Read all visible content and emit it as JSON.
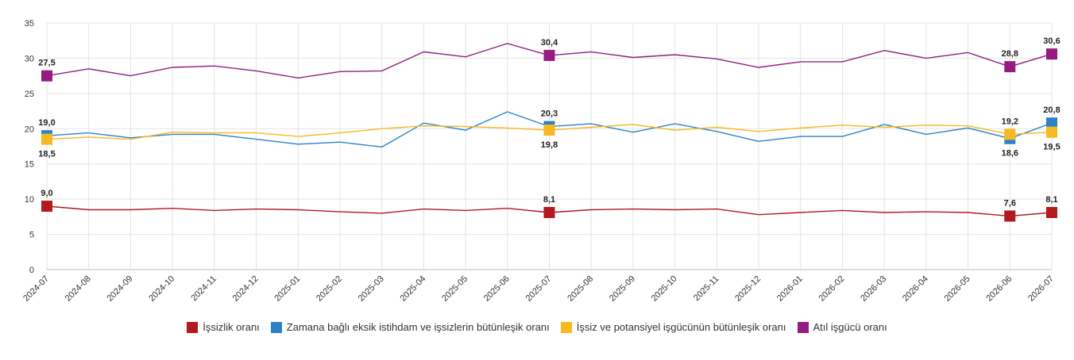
{
  "chart_data": {
    "type": "line",
    "x": [
      "2024-07",
      "2024-08",
      "2024-09",
      "2024-10",
      "2024-11",
      "2024-12",
      "2025-01",
      "2025-02",
      "2025-03",
      "2025-04",
      "2025-05",
      "2025-06",
      "2025-07",
      "2025-08",
      "2025-09",
      "2025-10",
      "2025-11",
      "2025-12",
      "2026-01",
      "2026-02",
      "2026-03",
      "2026-04",
      "2026-05",
      "2026-06",
      "2026-07"
    ],
    "ylim": [
      0,
      35
    ],
    "yticks": [
      0,
      5,
      10,
      15,
      20,
      25,
      30,
      35
    ],
    "grid": true,
    "legend_position": "bottom",
    "series": [
      {
        "name": "İşsizlik oranı",
        "color": "#b3191f",
        "values": [
          9.0,
          8.5,
          8.5,
          8.7,
          8.4,
          8.6,
          8.5,
          8.2,
          8.0,
          8.6,
          8.4,
          8.7,
          8.1,
          8.5,
          8.6,
          8.5,
          8.6,
          7.8,
          8.1,
          8.4,
          8.1,
          8.2,
          8.1,
          7.6,
          8.1
        ],
        "labels": {
          "0": "9,0",
          "12": "8,1",
          "23": "7,6",
          "24": "8,1"
        },
        "label_side": {
          "0": "above",
          "12": "above",
          "23": "above",
          "24": "above"
        }
      },
      {
        "name": "Zamana bağlı eksik istihdam ve işsizlerin bütünleşik oranı",
        "color": "#2b82c8",
        "values": [
          19.0,
          19.4,
          18.7,
          19.2,
          19.2,
          18.5,
          17.8,
          18.1,
          17.4,
          20.8,
          19.8,
          22.4,
          20.3,
          20.7,
          19.5,
          20.7,
          19.6,
          18.2,
          18.9,
          18.9,
          20.6,
          19.2,
          20.1,
          18.6,
          20.8
        ],
        "labels": {
          "0": "19,0",
          "12": "20,3",
          "23": "18,6",
          "24": "20,8"
        },
        "label_side": {
          "0": "above",
          "12": "above",
          "23": "below",
          "24": "above"
        }
      },
      {
        "name": "İşsiz ve potansiyel işgücünün bütünleşik oranı",
        "color": "#f5b921",
        "values": [
          18.5,
          18.8,
          18.5,
          19.5,
          19.4,
          19.4,
          18.9,
          19.4,
          20.0,
          20.4,
          20.3,
          20.1,
          19.8,
          20.2,
          20.6,
          19.8,
          20.2,
          19.6,
          20.1,
          20.5,
          20.2,
          20.5,
          20.4,
          19.2,
          19.5
        ],
        "labels": {
          "0": "18,5",
          "12": "19,8",
          "23": "19,2",
          "24": "19,5"
        },
        "label_side": {
          "0": "below",
          "12": "below",
          "23": "above",
          "24": "below"
        }
      },
      {
        "name": "Atıl işgücü oranı",
        "color": "#951b81",
        "values": [
          27.5,
          28.5,
          27.5,
          28.7,
          28.9,
          28.2,
          27.2,
          28.1,
          28.2,
          30.9,
          30.2,
          32.1,
          30.4,
          30.9,
          30.1,
          30.5,
          29.9,
          28.7,
          29.5,
          29.5,
          31.1,
          30.0,
          30.8,
          28.8,
          30.6
        ],
        "labels": {
          "0": "27,5",
          "12": "30,4",
          "23": "28,8",
          "24": "30,6"
        },
        "label_side": {
          "0": "above",
          "12": "above",
          "23": "above",
          "24": "above"
        }
      }
    ]
  }
}
